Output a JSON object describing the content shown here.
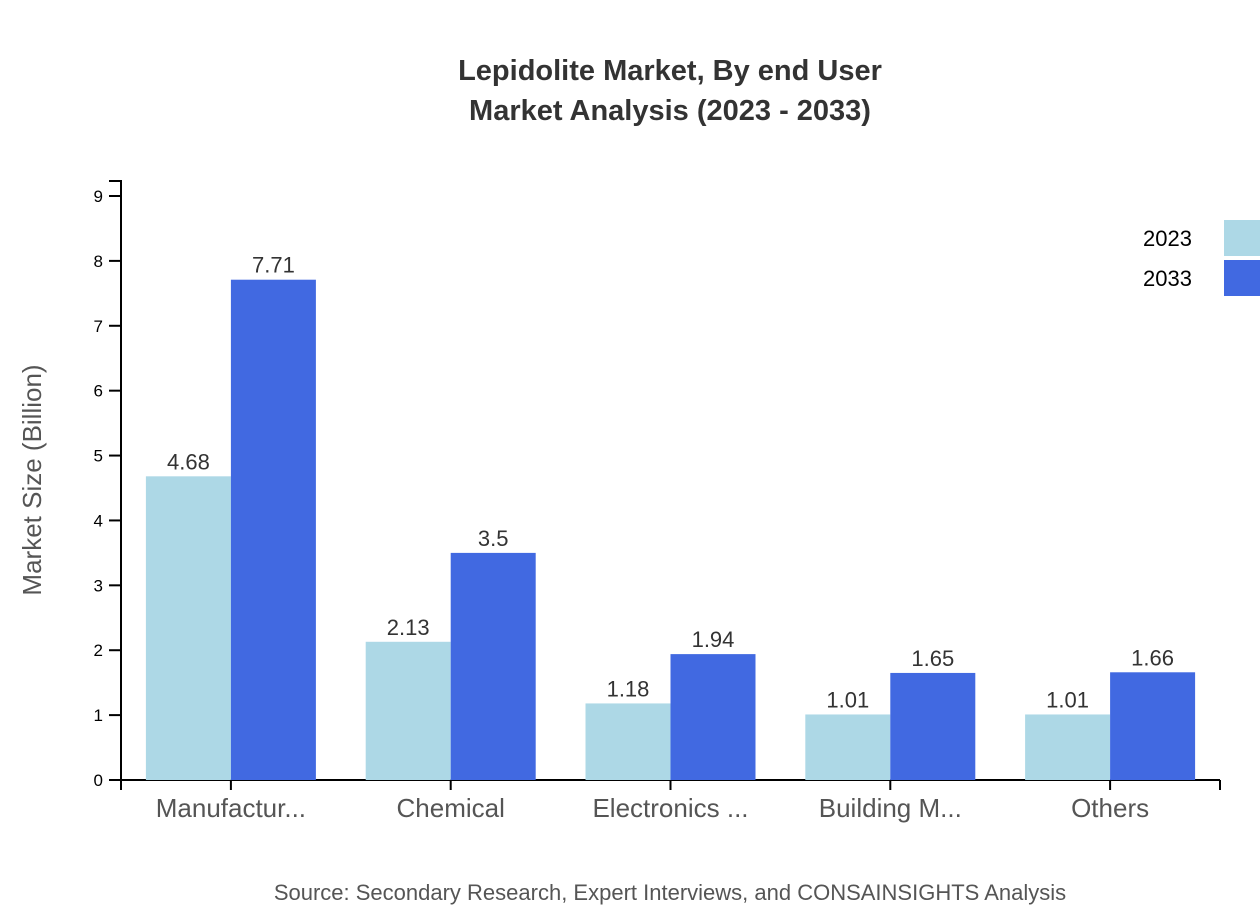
{
  "chart_data": {
    "type": "bar",
    "title": "Lepidolite Market, By end User",
    "subtitle": "Market Analysis (2023 - 2033)",
    "xlabel": "",
    "ylabel": "Market Size (Billion)",
    "ylim": [
      0,
      9
    ],
    "yticks": [
      0,
      1,
      2,
      3,
      4,
      5,
      6,
      7,
      8,
      9
    ],
    "categories": [
      "Manufactur...",
      "Chemical",
      "Electronics ...",
      "Building M...",
      "Others"
    ],
    "series": [
      {
        "name": "2023",
        "color": "#add8e6",
        "values": [
          4.68,
          2.13,
          1.18,
          1.01,
          1.01
        ]
      },
      {
        "name": "2033",
        "color": "#4169e1",
        "values": [
          7.71,
          3.5,
          1.94,
          1.65,
          1.66
        ]
      }
    ],
    "legend_position": "top-right",
    "grid": false,
    "source": "Source: Secondary Research, Expert Interviews, and CONSAINSIGHTS Analysis"
  }
}
